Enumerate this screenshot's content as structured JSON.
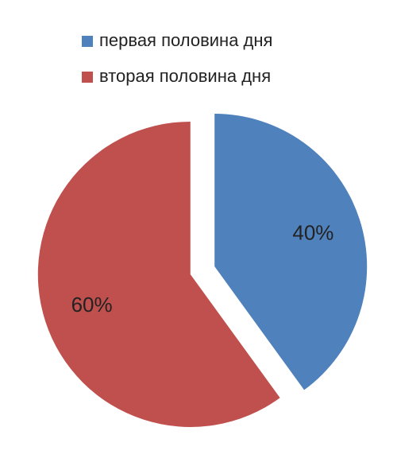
{
  "chart_data": {
    "type": "pie",
    "categories": [
      "первая половина дня",
      "вторая половина дня"
    ],
    "values": [
      40,
      60
    ],
    "value_labels": [
      "40%",
      "60%"
    ],
    "colors": [
      "#4f81bd",
      "#c0504d"
    ],
    "legend": "top"
  }
}
